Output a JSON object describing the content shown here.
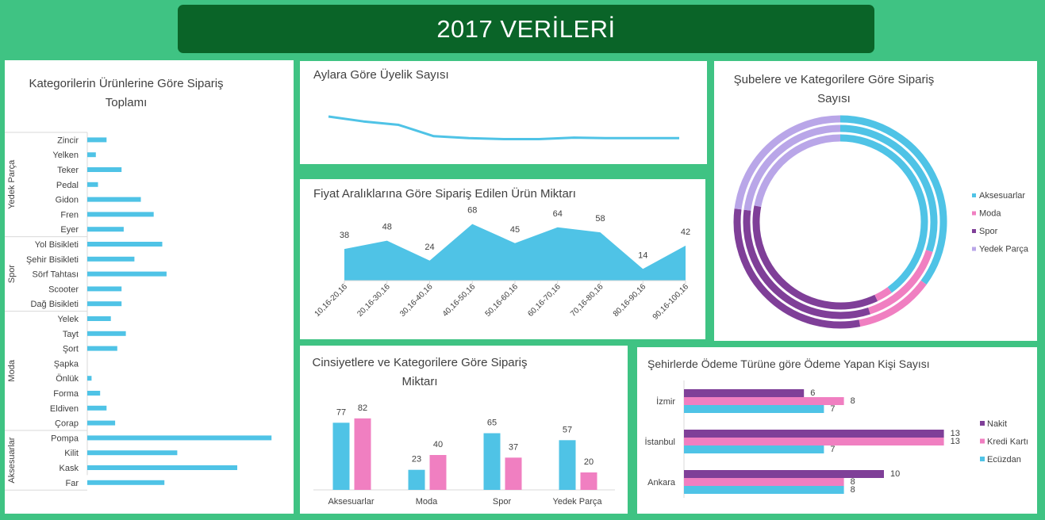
{
  "header": {
    "title": "2017 VERİLERİ"
  },
  "colors": {
    "background": "#3fc383",
    "banner": "#0a6428",
    "blue": "#4fc3e6",
    "pink": "#f07fc1",
    "purple": "#7f3f98",
    "lavender": "#b9a6e8"
  },
  "chart_data": [
    {
      "id": "kategori_urun",
      "type": "bar",
      "orientation": "horizontal",
      "title": "Kategorilerin Ürünlerine Göre Sipariş Toplamı",
      "groups": [
        {
          "name": "Yedek Parça",
          "items": [
            {
              "label": "Zincir",
              "value": 9
            },
            {
              "label": "Yelken",
              "value": 4
            },
            {
              "label": "Teker",
              "value": 16
            },
            {
              "label": "Pedal",
              "value": 5
            },
            {
              "label": "Gidon",
              "value": 25
            },
            {
              "label": "Fren",
              "value": 31
            },
            {
              "label": "Eyer",
              "value": 17
            }
          ]
        },
        {
          "name": "Spor",
          "items": [
            {
              "label": "Yol Bisikleti",
              "value": 35
            },
            {
              "label": "Şehir Bisikleti",
              "value": 22
            },
            {
              "label": "Sörf Tahtası",
              "value": 37
            },
            {
              "label": "Scooter",
              "value": 16
            },
            {
              "label": "Dağ Bisikleti",
              "value": 16
            }
          ]
        },
        {
          "name": "Moda",
          "items": [
            {
              "label": "Yelek",
              "value": 11
            },
            {
              "label": "Tayt",
              "value": 18
            },
            {
              "label": "Şort",
              "value": 14
            },
            {
              "label": "Şapka",
              "value": 0
            },
            {
              "label": "Önlük",
              "value": 2
            },
            {
              "label": "Forma",
              "value": 6
            },
            {
              "label": "Eldiven",
              "value": 9
            },
            {
              "label": "Çorap",
              "value": 13
            }
          ]
        },
        {
          "name": "Aksesuarlar",
          "items": [
            {
              "label": "Pompa",
              "value": 86
            },
            {
              "label": "Kilit",
              "value": 42
            },
            {
              "label": "Kask",
              "value": 70
            },
            {
              "label": "Far",
              "value": 36
            }
          ]
        }
      ]
    },
    {
      "id": "uyelik",
      "type": "line",
      "title": "Aylara Göre Üyelik Sayısı",
      "values": [
        100,
        90,
        83,
        60,
        56,
        54,
        54,
        57,
        56,
        56,
        56
      ]
    },
    {
      "id": "fiyat",
      "type": "area",
      "title": "Fiyat Aralıklarına Göre Sipariş Edilen Ürün Miktarı",
      "categories": [
        "10,16-20,16",
        "20,16-30,16",
        "30,16-40,16",
        "40,16-50,16",
        "50,16-60,16",
        "60,16-70,16",
        "70,16-80,16",
        "80,16-90,16",
        "90,16-100,16"
      ],
      "values": [
        38,
        48,
        24,
        68,
        45,
        64,
        58,
        14,
        42
      ]
    },
    {
      "id": "subeler",
      "type": "pie",
      "subtype": "doughnut",
      "title": "Şubelere ve Kategorilere Göre Sipariş Sayısı",
      "legend": [
        "Aksesuarlar",
        "Moda",
        "Spor",
        "Yedek Parça"
      ],
      "rings": [
        [
          35,
          12,
          30,
          23
        ],
        [
          30,
          15,
          32,
          23
        ],
        [
          40,
          3,
          35,
          22
        ]
      ]
    },
    {
      "id": "cinsiyet",
      "type": "bar",
      "title": "Cinsiyetlere ve Kategorilere Göre Sipariş Miktarı",
      "categories": [
        "Aksesuarlar",
        "Moda",
        "Spor",
        "Yedek Parça"
      ],
      "series": [
        {
          "values": [
            77,
            23,
            65,
            57
          ]
        },
        {
          "values": [
            82,
            40,
            37,
            20
          ]
        }
      ]
    },
    {
      "id": "odeme",
      "type": "bar",
      "orientation": "horizontal",
      "title": "Şehirlerde Ödeme Türüne göre Ödeme Yapan Kişi Sayısı",
      "categories": [
        "İzmir",
        "İstanbul",
        "Ankara"
      ],
      "series": [
        {
          "name": "Nakit",
          "values": [
            6,
            13,
            10
          ]
        },
        {
          "name": "Kredi Kartı",
          "values": [
            8,
            13,
            8
          ]
        },
        {
          "name": "Ecüzdan",
          "values": [
            7,
            7,
            8
          ]
        }
      ]
    }
  ]
}
